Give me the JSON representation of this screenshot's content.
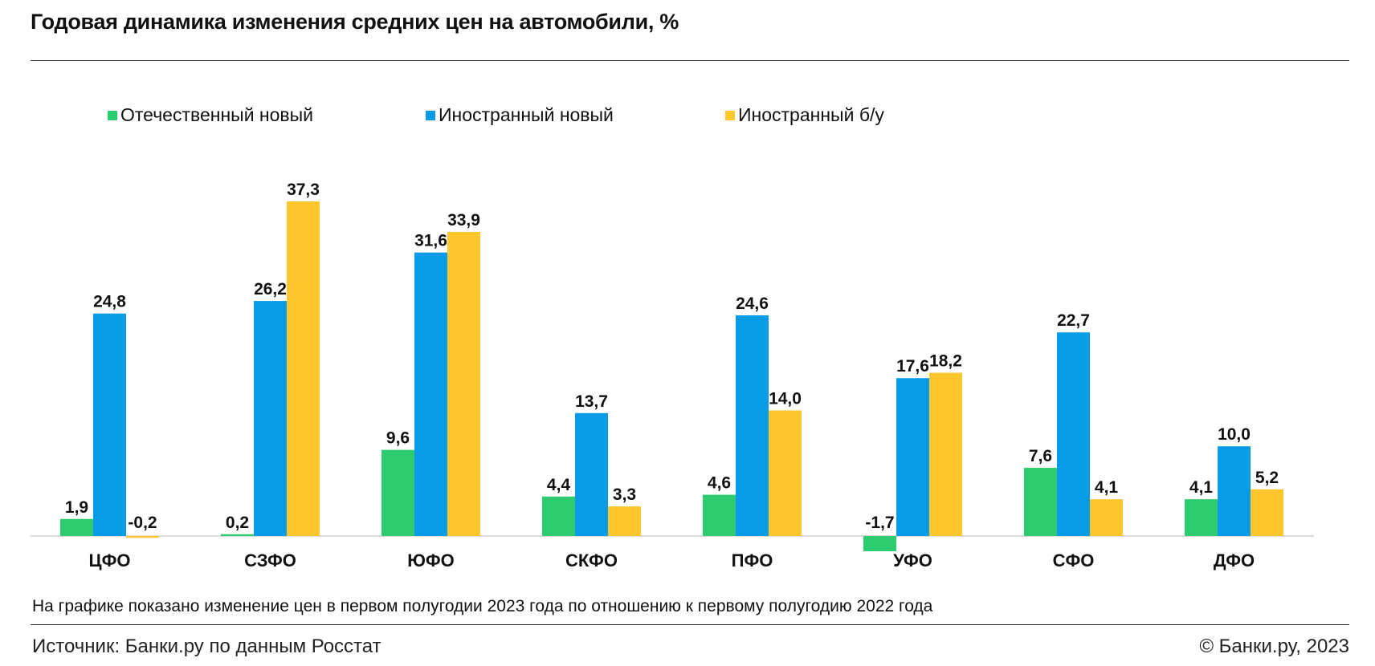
{
  "header": {
    "title": "Годовая динамика изменения средних цен на автомобили, %"
  },
  "colors": {
    "domestic_new": "#2ecc71",
    "foreign_new": "#0a9be6",
    "foreign_used": "#ffc62e"
  },
  "chart_data": {
    "type": "bar",
    "title": "Годовая динамика изменения средних цен на автомобили, %",
    "categories": [
      "ЦФО",
      "СЗФО",
      "ЮФО",
      "СКФО",
      "ПФО",
      "УФО",
      "СФО",
      "ДФО"
    ],
    "series": [
      {
        "name": "Отечественный новый",
        "color": "#2ecc71",
        "values": [
          1.9,
          0.2,
          9.6,
          4.4,
          4.6,
          -1.7,
          7.6,
          4.1
        ],
        "labels": [
          "1,9",
          "0,2",
          "9,6",
          "4,4",
          "4,6",
          "-1,7",
          "7,6",
          "4,1"
        ]
      },
      {
        "name": "Иностранный новый",
        "color": "#0a9be6",
        "values": [
          24.8,
          26.2,
          31.6,
          13.7,
          24.6,
          17.6,
          22.7,
          10.0
        ],
        "labels": [
          "24,8",
          "26,2",
          "31,6",
          "13,7",
          "24,6",
          "17,6",
          "22,7",
          "10,0"
        ]
      },
      {
        "name": "Иностранный б/у",
        "color": "#ffc62e",
        "values": [
          -0.2,
          37.3,
          33.9,
          3.3,
          14.0,
          18.2,
          4.1,
          5.2
        ],
        "labels": [
          "-0,2",
          "37,3",
          "33,9",
          "3,3",
          "14,0",
          "18,2",
          "4,1",
          "5,2"
        ]
      }
    ],
    "legend_position": "top",
    "grid": false
  },
  "footer": {
    "note": "На графике показано изменение цен в первом полугодии 2023 года по отношению к первому полугодию 2022 года",
    "source": "Источник: Банки.ру по данным Росстат",
    "copyright": "© Банки.ру, 2023"
  }
}
